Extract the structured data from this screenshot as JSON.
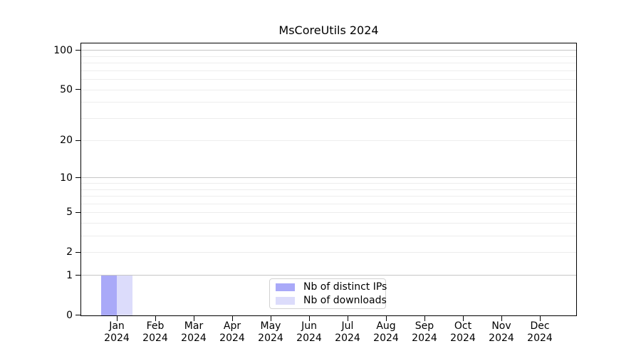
{
  "chart_data": {
    "type": "bar",
    "title": "MsCoreUtils 2024",
    "categories": [
      "Jan",
      "Feb",
      "Mar",
      "Apr",
      "May",
      "Jun",
      "Jul",
      "Aug",
      "Sep",
      "Oct",
      "Nov",
      "Dec"
    ],
    "x_year_label": "2024",
    "series": [
      {
        "name": "Nb of distinct IPs",
        "color": "#a9a9f8",
        "values": [
          1,
          0,
          0,
          0,
          0,
          0,
          0,
          0,
          0,
          0,
          0,
          0
        ]
      },
      {
        "name": "Nb of downloads",
        "color": "#dcdcfb",
        "values": [
          1,
          0,
          0,
          0,
          0,
          0,
          0,
          0,
          0,
          0,
          0,
          0
        ]
      }
    ],
    "y_axis": {
      "scale": "log1p",
      "tick_values": [
        0,
        1,
        2,
        5,
        10,
        20,
        50,
        100
      ],
      "range": [
        0,
        115
      ]
    },
    "gridlines": {
      "major_values": [
        1,
        10,
        100
      ],
      "minor_values": [
        2,
        3,
        4,
        5,
        6,
        7,
        8,
        9,
        20,
        30,
        40,
        50,
        60,
        70,
        80,
        90
      ]
    },
    "legend": {
      "position": "bottom-center"
    },
    "colors": {
      "background": "#ffffff",
      "axis": "#000000",
      "major_grid": "#c6c6c6",
      "minor_grid": "#ededed",
      "legend_border": "#d2d2d2",
      "bar_distinct_ips": "#a9a9f8",
      "bar_downloads": "#dcdcfb"
    }
  }
}
